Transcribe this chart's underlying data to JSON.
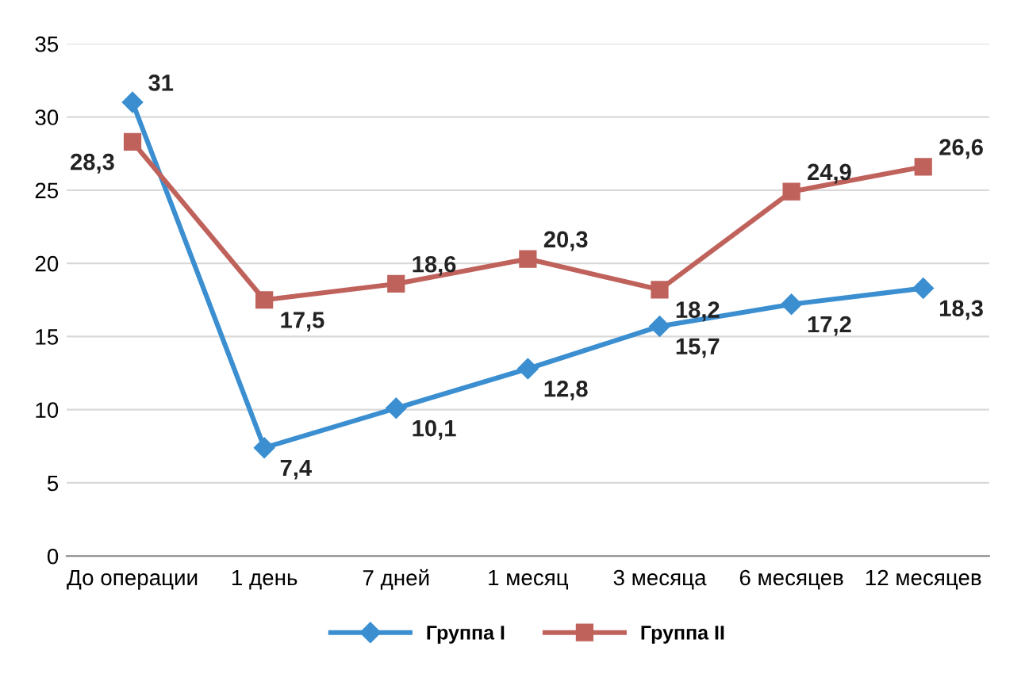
{
  "chart_data": {
    "type": "line",
    "categories": [
      "До операции",
      "1 день",
      "7 дней",
      "1 месяц",
      "3 месяца",
      "6 месяцев",
      "12 месяцев"
    ],
    "series": [
      {
        "name": "Группа I",
        "color": "#3b8fd0",
        "marker": "diamond",
        "values": [
          31,
          7.4,
          10.1,
          12.8,
          15.7,
          17.2,
          18.3
        ],
        "value_labels": [
          "31",
          "7,4",
          "10,1",
          "12,8",
          "15,7",
          "17,2",
          "18,3"
        ]
      },
      {
        "name": "Группа II",
        "color": "#c0625c",
        "marker": "square",
        "values": [
          28.3,
          17.5,
          18.6,
          20.3,
          18.2,
          24.9,
          26.6
        ],
        "value_labels": [
          "28,3",
          "17,5",
          "18,6",
          "20,3",
          "18,2",
          "24,9",
          "26,6"
        ]
      }
    ],
    "ylim": [
      0,
      35
    ],
    "yticks": [
      0,
      5,
      10,
      15,
      20,
      25,
      30,
      35
    ],
    "grid": "y",
    "legend": "bottom",
    "line_style": "solid"
  }
}
